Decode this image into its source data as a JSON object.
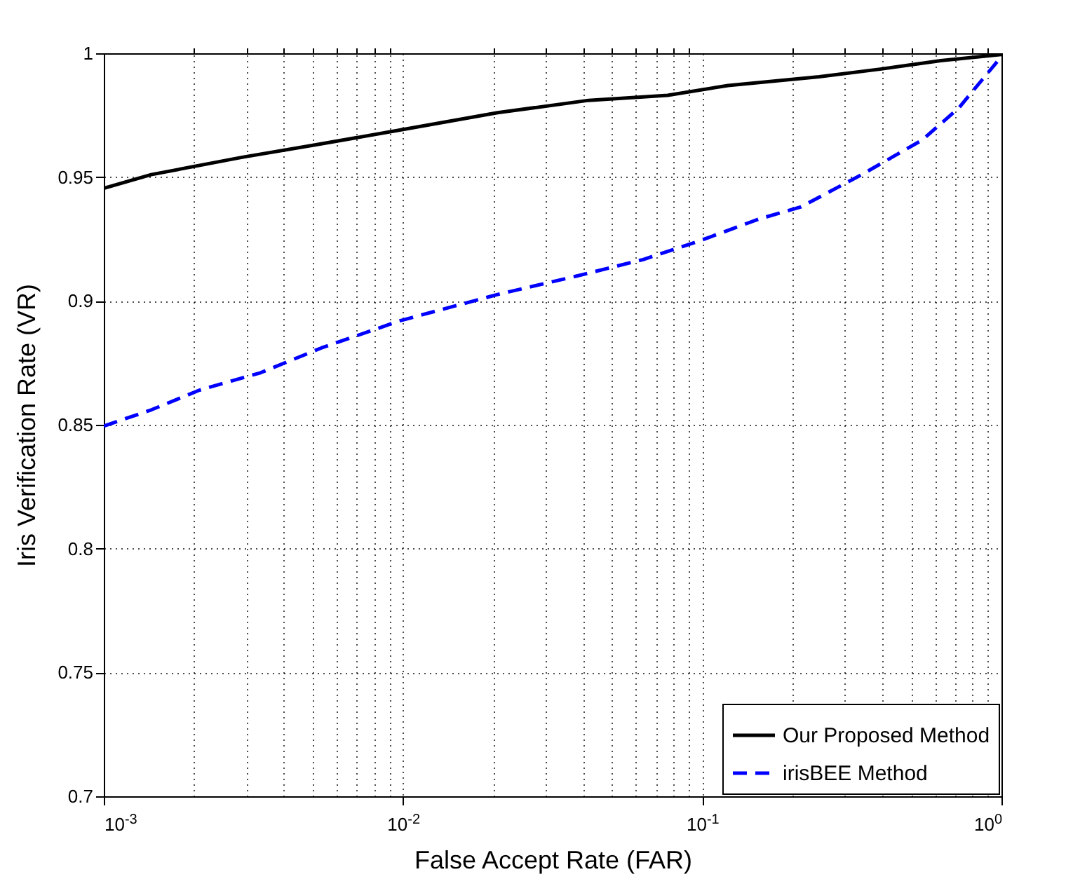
{
  "chart_data": {
    "type": "line",
    "xlabel": "False Accept Rate (FAR)",
    "ylabel": "Iris Verification Rate (VR)",
    "log": "x",
    "grid": true,
    "legend": "bottom right",
    "xlim": [
      0.001,
      1
    ],
    "ylim": [
      0.7,
      1
    ],
    "xticks": [
      {
        "value": 0.001,
        "label": "10$^{-3}$"
      },
      {
        "value": 0.01,
        "label": "10$^{-2}$"
      },
      {
        "value": 0.1,
        "label": "10$^{-1}$"
      },
      {
        "value": 1,
        "label": "10$^{0}$"
      }
    ],
    "yticks": [
      0.7,
      0.75,
      0.8,
      0.85,
      0.9,
      0.95,
      1
    ],
    "series": [
      {
        "name": "Our Proposed Method",
        "color": "#000000",
        "line_style": "solid",
        "x": [
          0.001,
          0.00144,
          0.0029,
          0.00508,
          0.00977,
          0.0207,
          0.0417,
          0.0766,
          0.122,
          0.246,
          0.393,
          0.627,
          1
        ],
        "values": [
          0.9455,
          0.951,
          0.958,
          0.963,
          0.969,
          0.976,
          0.981,
          0.983,
          0.987,
          0.9905,
          0.9936,
          0.997,
          0.9995
        ]
      },
      {
        "name": "irisBEE Method",
        "color": "#0000ff",
        "line_style": "dashed",
        "x": [
          0.001,
          0.00144,
          0.00209,
          0.00334,
          0.00533,
          0.00977,
          0.0207,
          0.0379,
          0.0634,
          0.0966,
          0.154,
          0.214,
          0.341,
          0.544,
          0.721,
          1
        ],
        "values": [
          0.8495,
          0.856,
          0.864,
          0.871,
          0.881,
          0.892,
          0.9026,
          0.91,
          0.9167,
          0.924,
          0.933,
          0.938,
          0.951,
          0.965,
          0.978,
          0.9987
        ]
      }
    ]
  }
}
